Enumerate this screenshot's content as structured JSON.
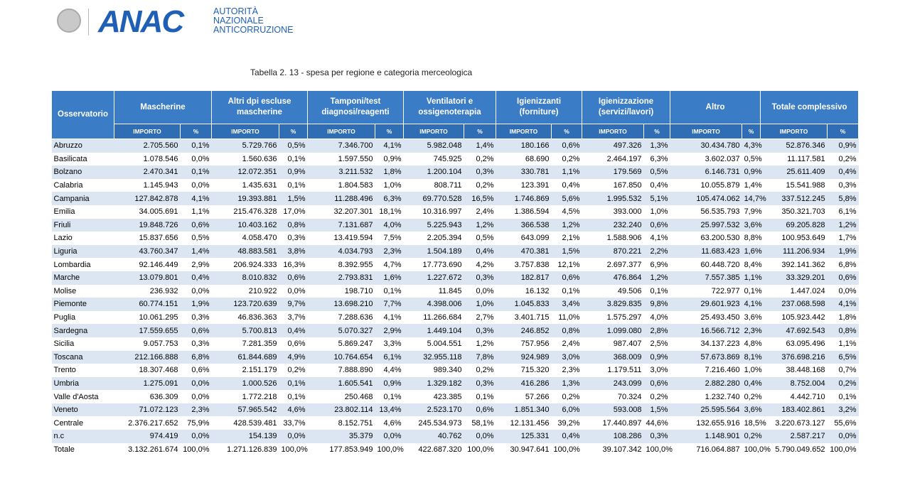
{
  "header": {
    "logo": "ANAC",
    "org_lines": [
      "AUTORITÀ",
      "NAZIONALE",
      "ANTICORRUZIONE"
    ]
  },
  "caption": "Tabella 2. 13 - spesa per regione e categoria merceologica",
  "table": {
    "row_header": "Osservatorio",
    "groups": [
      {
        "name": "Mascherine",
        "sub": [
          "IMPORTO",
          "%"
        ]
      },
      {
        "name": "Altri dpi escluse mascherine",
        "sub": [
          "IMPORTO",
          "%"
        ]
      },
      {
        "name": "Tamponi/test diagnosi/reagenti",
        "sub": [
          "IMPORTO",
          "%"
        ]
      },
      {
        "name": "Ventilatori e ossigenoterapia",
        "sub": [
          "IMPORTO",
          "%"
        ]
      },
      {
        "name": "Igienizzanti (forniture)",
        "sub": [
          "IMPORTO",
          "%"
        ]
      },
      {
        "name": "Igienizzazione (servizi/lavori)",
        "sub": [
          "IMPORTO",
          "%"
        ]
      },
      {
        "name": "Altro",
        "sub": [
          "IMPORTO",
          "%"
        ]
      },
      {
        "name": "Totale complessivo",
        "sub": [
          "IMPORTO",
          "%"
        ]
      }
    ],
    "rows": [
      [
        "Abruzzo",
        "2.705.560",
        "0,1%",
        "5.729.766",
        "0,5%",
        "7.346.700",
        "4,1%",
        "5.982.048",
        "1,4%",
        "180.166",
        "0,6%",
        "497.326",
        "1,3%",
        "30.434.780",
        "4,3%",
        "52.876.346",
        "0,9%"
      ],
      [
        "Basilicata",
        "1.078.546",
        "0,0%",
        "1.560.636",
        "0,1%",
        "1.597.550",
        "0,9%",
        "745.925",
        "0,2%",
        "68.690",
        "0,2%",
        "2.464.197",
        "6,3%",
        "3.602.037",
        "0,5%",
        "11.117.581",
        "0,2%"
      ],
      [
        "Bolzano",
        "2.470.341",
        "0,1%",
        "12.072.351",
        "0,9%",
        "3.211.532",
        "1,8%",
        "1.200.104",
        "0,3%",
        "330.781",
        "1,1%",
        "179.569",
        "0,5%",
        "6.146.731",
        "0,9%",
        "25.611.409",
        "0,4%"
      ],
      [
        "Calabria",
        "1.145.943",
        "0,0%",
        "1.435.631",
        "0,1%",
        "1.804.583",
        "1,0%",
        "808.711",
        "0,2%",
        "123.391",
        "0,4%",
        "167.850",
        "0,4%",
        "10.055.879",
        "1,4%",
        "15.541.988",
        "0,3%"
      ],
      [
        "Campania",
        "127.842.878",
        "4,1%",
        "19.393.881",
        "1,5%",
        "11.288.496",
        "6,3%",
        "69.770.528",
        "16,5%",
        "1.746.869",
        "5,6%",
        "1.995.532",
        "5,1%",
        "105.474.062",
        "14,7%",
        "337.512.245",
        "5,8%"
      ],
      [
        "Emilia",
        "34.005.691",
        "1,1%",
        "215.476.328",
        "17,0%",
        "32.207.301",
        "18,1%",
        "10.316.997",
        "2,4%",
        "1.386.594",
        "4,5%",
        "393.000",
        "1,0%",
        "56.535.793",
        "7,9%",
        "350.321.703",
        "6,1%"
      ],
      [
        "Friuli",
        "19.848.726",
        "0,6%",
        "10.403.162",
        "0,8%",
        "7.131.687",
        "4,0%",
        "5.225.943",
        "1,2%",
        "366.538",
        "1,2%",
        "232.240",
        "0,6%",
        "25.997.532",
        "3,6%",
        "69.205.828",
        "1,2%"
      ],
      [
        "Lazio",
        "15.837.656",
        "0,5%",
        "4.058.470",
        "0,3%",
        "13.419.594",
        "7,5%",
        "2.205.394",
        "0,5%",
        "643.099",
        "2,1%",
        "1.588.906",
        "4,1%",
        "63.200.530",
        "8,8%",
        "100.953.649",
        "1,7%"
      ],
      [
        "Liguria",
        "43.760.347",
        "1,4%",
        "48.883.581",
        "3,8%",
        "4.034.793",
        "2,3%",
        "1.504.189",
        "0,4%",
        "470.381",
        "1,5%",
        "870.221",
        "2,2%",
        "11.683.423",
        "1,6%",
        "111.206.934",
        "1,9%"
      ],
      [
        "Lombardia",
        "92.146.449",
        "2,9%",
        "206.924.333",
        "16,3%",
        "8.392.955",
        "4,7%",
        "17.773.690",
        "4,2%",
        "3.757.838",
        "12,1%",
        "2.697.377",
        "6,9%",
        "60.448.720",
        "8,4%",
        "392.141.362",
        "6,8%"
      ],
      [
        "Marche",
        "13.079.801",
        "0,4%",
        "8.010.832",
        "0,6%",
        "2.793.831",
        "1,6%",
        "1.227.672",
        "0,3%",
        "182.817",
        "0,6%",
        "476.864",
        "1,2%",
        "7.557.385",
        "1,1%",
        "33.329.201",
        "0,6%"
      ],
      [
        "Molise",
        "236.932",
        "0,0%",
        "210.922",
        "0,0%",
        "198.710",
        "0,1%",
        "11.845",
        "0,0%",
        "16.132",
        "0,1%",
        "49.506",
        "0,1%",
        "722.977",
        "0,1%",
        "1.447.024",
        "0,0%"
      ],
      [
        "Piemonte",
        "60.774.151",
        "1,9%",
        "123.720.639",
        "9,7%",
        "13.698.210",
        "7,7%",
        "4.398.006",
        "1,0%",
        "1.045.833",
        "3,4%",
        "3.829.835",
        "9,8%",
        "29.601.923",
        "4,1%",
        "237.068.598",
        "4,1%"
      ],
      [
        "Puglia",
        "10.061.295",
        "0,3%",
        "46.836.363",
        "3,7%",
        "7.288.636",
        "4,1%",
        "11.266.684",
        "2,7%",
        "3.401.715",
        "11,0%",
        "1.575.297",
        "4,0%",
        "25.493.450",
        "3,6%",
        "105.923.442",
        "1,8%"
      ],
      [
        "Sardegna",
        "17.559.655",
        "0,6%",
        "5.700.813",
        "0,4%",
        "5.070.327",
        "2,9%",
        "1.449.104",
        "0,3%",
        "246.852",
        "0,8%",
        "1.099.080",
        "2,8%",
        "16.566.712",
        "2,3%",
        "47.692.543",
        "0,8%"
      ],
      [
        "Sicilia",
        "9.057.753",
        "0,3%",
        "7.281.359",
        "0,6%",
        "5.869.247",
        "3,3%",
        "5.004.551",
        "1,2%",
        "757.956",
        "2,4%",
        "987.407",
        "2,5%",
        "34.137.223",
        "4,8%",
        "63.095.496",
        "1,1%"
      ],
      [
        "Toscana",
        "212.166.888",
        "6,8%",
        "61.844.689",
        "4,9%",
        "10.764.654",
        "6,1%",
        "32.955.118",
        "7,8%",
        "924.989",
        "3,0%",
        "368.009",
        "0,9%",
        "57.673.869",
        "8,1%",
        "376.698.216",
        "6,5%"
      ],
      [
        "Trento",
        "18.307.468",
        "0,6%",
        "2.151.179",
        "0,2%",
        "7.888.890",
        "4,4%",
        "989.340",
        "0,2%",
        "715.320",
        "2,3%",
        "1.179.511",
        "3,0%",
        "7.216.460",
        "1,0%",
        "38.448.168",
        "0,7%"
      ],
      [
        "Umbria",
        "1.275.091",
        "0,0%",
        "1.000.526",
        "0,1%",
        "1.605.541",
        "0,9%",
        "1.329.182",
        "0,3%",
        "416.286",
        "1,3%",
        "243.099",
        "0,6%",
        "2.882.280",
        "0,4%",
        "8.752.004",
        "0,2%"
      ],
      [
        "Valle d'Aosta",
        "636.309",
        "0,0%",
        "1.772.218",
        "0,1%",
        "250.468",
        "0,1%",
        "423.385",
        "0,1%",
        "57.266",
        "0,2%",
        "70.324",
        "0,2%",
        "1.232.740",
        "0,2%",
        "4.442.710",
        "0,1%"
      ],
      [
        "Veneto",
        "71.072.123",
        "2,3%",
        "57.965.542",
        "4,6%",
        "23.802.114",
        "13,4%",
        "2.523.170",
        "0,6%",
        "1.851.340",
        "6,0%",
        "593.008",
        "1,5%",
        "25.595.564",
        "3,6%",
        "183.402.861",
        "3,2%"
      ],
      [
        "Centrale",
        "2.376.217.652",
        "75,9%",
        "428.539.481",
        "33,7%",
        "8.152.751",
        "4,6%",
        "245.534.973",
        "58,1%",
        "12.131.456",
        "39,2%",
        "17.440.897",
        "44,6%",
        "132.655.916",
        "18,5%",
        "3.220.673.127",
        "55,6%"
      ],
      [
        "n.c",
        "974.419",
        "0,0%",
        "154.139",
        "0,0%",
        "35.379",
        "0,0%",
        "40.762",
        "0,0%",
        "125.331",
        "0,4%",
        "108.286",
        "0,3%",
        "1.148.901",
        "0,2%",
        "2.587.217",
        "0,0%"
      ],
      [
        "Totale",
        "3.132.261.674",
        "100,0%",
        "1.271.126.839",
        "100,0%",
        "177.853.949",
        "100,0%",
        "422.687.320",
        "100,0%",
        "30.947.641",
        "100,0%",
        "39.107.342",
        "100,0%",
        "716.064.887",
        "100,0%",
        "5.790.049.652",
        "100,0%"
      ]
    ]
  }
}
